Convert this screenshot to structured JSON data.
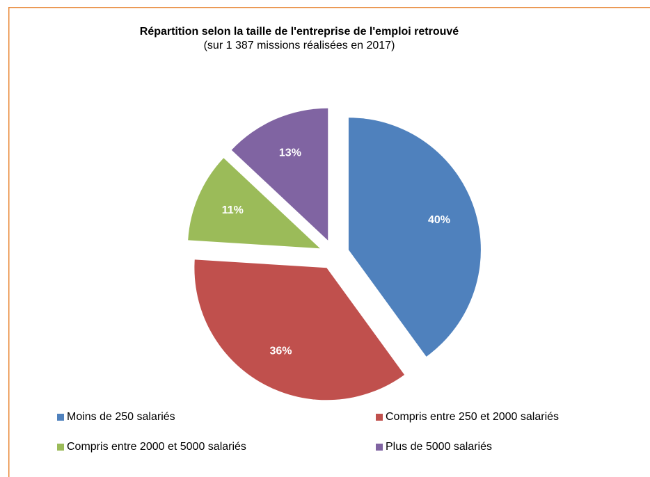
{
  "chart_data": {
    "type": "pie",
    "title": "Répartition selon la taille de l'entreprise de l'emploi retrouvé",
    "subtitle": "(sur 1 387 missions réalisées en 2017)",
    "categories": [
      "Moins de 250 salariés",
      "Compris entre 250 et 2000 salariés",
      "Compris entre 2000 et 5000 salariés",
      "Plus de 5000 salariés"
    ],
    "values": [
      40,
      36,
      11,
      13
    ],
    "value_labels": [
      "40%",
      "36%",
      "11%",
      "13%"
    ],
    "colors": [
      "#4f81bd",
      "#c0504d",
      "#9bbb59",
      "#8064a2"
    ],
    "exploded": true
  }
}
